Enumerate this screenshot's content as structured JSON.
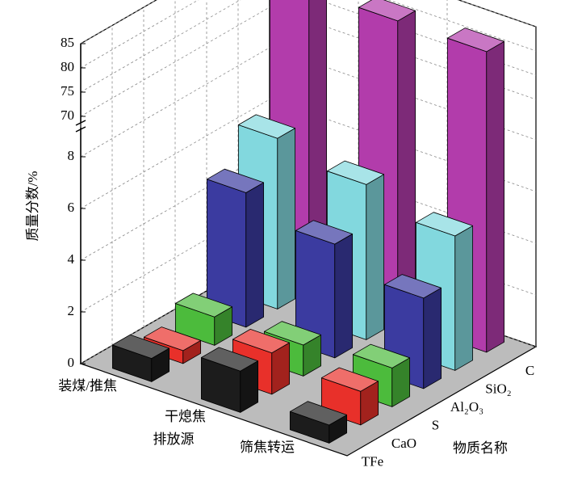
{
  "chart_data": {
    "type": "bar3d",
    "y_label": "质量分数/%",
    "x_label": "排放源",
    "z_label": "物质名称",
    "categories": [
      "装煤/推焦",
      "干熄焦",
      "筛焦转运"
    ],
    "series": [
      {
        "name": "TFe",
        "color": "#1c1c1c",
        "values": [
          0.9,
          1.6,
          0.7
        ]
      },
      {
        "name": "CaO",
        "color": "#e8302a",
        "values": [
          0.5,
          1.6,
          1.3
        ]
      },
      {
        "name": "S",
        "color": "#4cbb3c",
        "values": [
          1.1,
          1.2,
          1.5
        ]
      },
      {
        "name": "Al₂O₃",
        "color": "#3b3ba0",
        "values": [
          5.2,
          4.4,
          3.5
        ]
      },
      {
        "name": "SiO₂",
        "color": "#82d8de",
        "values": [
          6.6,
          6.0,
          5.2
        ]
      },
      {
        "name": "C",
        "color": "#b23cab",
        "values": [
          82,
          81,
          81
        ]
      }
    ],
    "ylim_segments": [
      [
        0,
        9
      ],
      [
        69,
        85
      ]
    ],
    "yticks": [
      0,
      2,
      4,
      6,
      8,
      70,
      75,
      80,
      85
    ],
    "grid": true
  }
}
